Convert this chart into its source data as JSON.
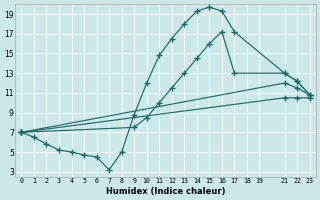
{
  "xlabel": "Humidex (Indice chaleur)",
  "bg_color": "#cce8e8",
  "grid_color": "#b0d8d8",
  "line_color": "#1a6b6b",
  "xlim": [
    -0.5,
    23.5
  ],
  "ylim": [
    2.5,
    20.0
  ],
  "xticks": [
    0,
    1,
    2,
    3,
    4,
    5,
    6,
    7,
    8,
    9,
    10,
    11,
    12,
    13,
    14,
    15,
    16,
    17,
    18,
    19,
    21,
    22,
    23
  ],
  "yticks": [
    3,
    5,
    7,
    9,
    11,
    13,
    15,
    17,
    19
  ],
  "line1_x": [
    0,
    1,
    2,
    3,
    4,
    5,
    6,
    7,
    8,
    9,
    10,
    11,
    12,
    13,
    14,
    15,
    16,
    17,
    21,
    22,
    23
  ],
  "line1_y": [
    7.0,
    6.5,
    5.8,
    5.2,
    5.0,
    4.7,
    4.5,
    3.2,
    5.0,
    8.8,
    12.0,
    14.8,
    16.5,
    18.0,
    19.3,
    19.7,
    19.3,
    17.2,
    13.0,
    12.2,
    10.8
  ],
  "line2_x": [
    0,
    9,
    10,
    11,
    12,
    13,
    14,
    15,
    16,
    17,
    21,
    22,
    23
  ],
  "line2_y": [
    7.0,
    7.5,
    8.5,
    10.0,
    11.5,
    13.0,
    14.5,
    16.0,
    17.2,
    13.0,
    13.0,
    12.2,
    10.8
  ],
  "line3_x": [
    0,
    21,
    22,
    23
  ],
  "line3_y": [
    7.0,
    12.0,
    11.5,
    10.8
  ],
  "line4_x": [
    0,
    21,
    22,
    23
  ],
  "line4_y": [
    7.0,
    10.5,
    10.5,
    10.5
  ],
  "markersize": 2.0,
  "linewidth": 0.85
}
